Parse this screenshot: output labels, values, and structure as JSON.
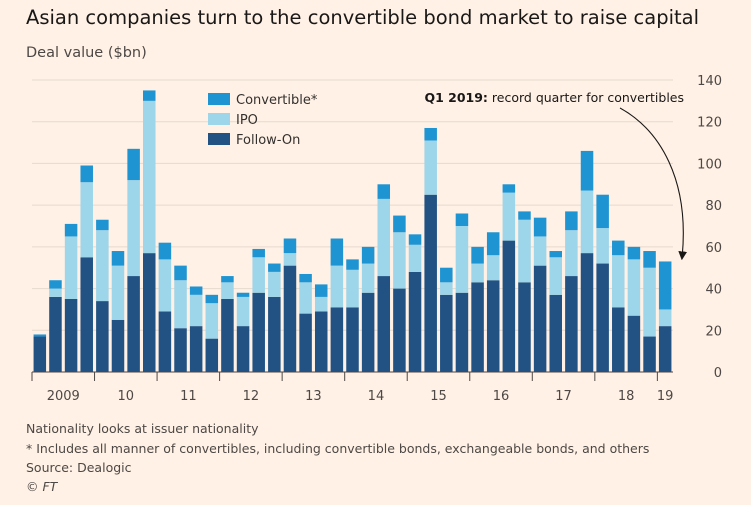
{
  "title": "Asian companies turn to the convertible bond market to raise capital",
  "subtitle": "Deal value ($bn)",
  "annotation": {
    "bold": "Q1 2019:",
    "text": " record quarter for convertibles"
  },
  "footnotes": {
    "note1": "Nationality looks at issuer nationality",
    "note2": "* Includes all manner of convertibles, including convertible bonds, exchangeable bonds, and others",
    "source": "Source: Dealogic",
    "copyright": "© FT"
  },
  "colors": {
    "background": "#fff1e5",
    "convertible": "#1f94d2",
    "ipo": "#9dd5ea",
    "follow_on": "#215283",
    "grid": "#e6d9ce"
  },
  "chart_data": {
    "type": "bar",
    "stacked": true,
    "ylim": [
      0,
      140
    ],
    "yticks": [
      0,
      20,
      40,
      60,
      80,
      100,
      120,
      140
    ],
    "xticks": [
      {
        "label": "2009",
        "index": 2
      },
      {
        "label": "10",
        "index": 6
      },
      {
        "label": "11",
        "index": 10
      },
      {
        "label": "12",
        "index": 14
      },
      {
        "label": "13",
        "index": 18
      },
      {
        "label": "14",
        "index": 22
      },
      {
        "label": "15",
        "index": 26
      },
      {
        "label": "16",
        "index": 30
      },
      {
        "label": "17",
        "index": 34
      },
      {
        "label": "18",
        "index": 38
      },
      {
        "label": "19",
        "index": 40.5
      }
    ],
    "legend_position": "top-left",
    "series": [
      {
        "name": "Follow-On",
        "key": "follow_on",
        "values": [
          17,
          36,
          35,
          55,
          34,
          25,
          46,
          57,
          29,
          21,
          22,
          16,
          35,
          22,
          38,
          36,
          51,
          28,
          29,
          31,
          31,
          38,
          46,
          40,
          48,
          85,
          37,
          38,
          43,
          44,
          63,
          43,
          51,
          37,
          46,
          57,
          52,
          31,
          27,
          17,
          22
        ]
      },
      {
        "name": "IPO",
        "key": "ipo",
        "values": [
          0,
          4,
          30,
          36,
          34,
          26,
          46,
          73,
          25,
          23,
          15,
          17,
          8,
          14,
          17,
          12,
          6,
          15,
          7,
          20,
          18,
          14,
          37,
          27,
          13,
          26,
          6,
          32,
          9,
          12,
          23,
          30,
          14,
          18,
          22,
          30,
          17,
          25,
          27,
          33,
          8
        ]
      },
      {
        "name": "Convertible*",
        "key": "convertible",
        "values": [
          1,
          4,
          6,
          8,
          5,
          7,
          15,
          5,
          8,
          7,
          4,
          4,
          3,
          2,
          4,
          4,
          7,
          4,
          6,
          13,
          5,
          8,
          7,
          8,
          5,
          6,
          7,
          6,
          8,
          11,
          4,
          4,
          9,
          3,
          9,
          19,
          16,
          7,
          6,
          8,
          23
        ]
      }
    ]
  }
}
